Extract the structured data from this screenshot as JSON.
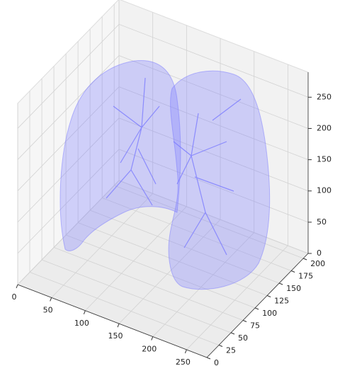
{
  "chart_data": {
    "type": "surface3d",
    "xlim": [
      0,
      280
    ],
    "ylim": [
      0,
      210
    ],
    "zlim": [
      0,
      290
    ],
    "xticks": [
      0,
      50,
      100,
      150,
      200,
      250
    ],
    "yticks": [
      0,
      25,
      50,
      75,
      100,
      125,
      150,
      175,
      200
    ],
    "zticks": [
      0,
      50,
      100,
      150,
      200,
      250
    ],
    "color": "#7b7bff"
  }
}
